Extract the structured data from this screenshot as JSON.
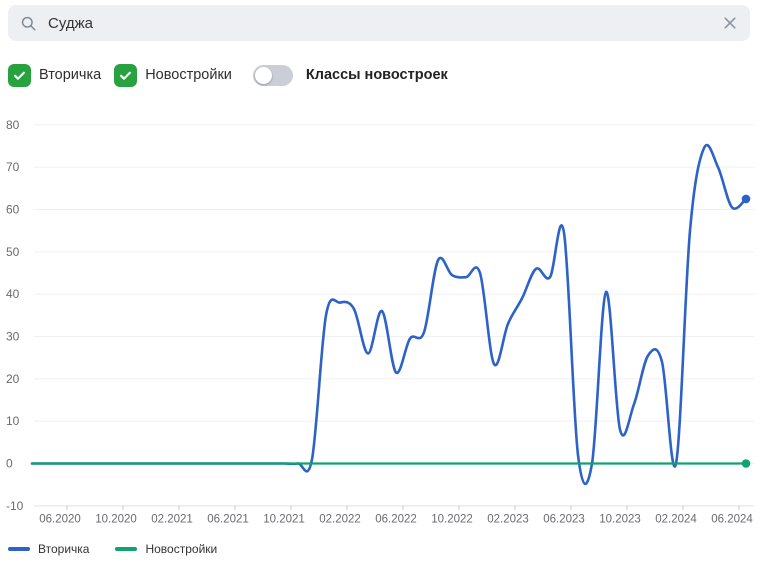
{
  "search": {
    "value": "Суджа",
    "placeholder": ""
  },
  "controls": {
    "checkboxes": [
      {
        "key": "vtorichka",
        "label": "Вторичка",
        "checked": true
      },
      {
        "key": "novostroyki",
        "label": "Новостройки",
        "checked": true
      }
    ],
    "toggle": {
      "key": "novostroyki-classes",
      "label": "Классы новостроек",
      "on": false
    }
  },
  "colors": {
    "checkbox_green": "#27a23e",
    "toggle_off_bg": "#c9ced7",
    "search_bg": "#edeff2",
    "grid_line": "#f0f0f2",
    "axis_line": "#e2e2e6",
    "tick_mark": "#c9c9ce",
    "axis_text": "#6b6b70",
    "series_blue": "#2d62c8",
    "series_green": "#0fa36d"
  },
  "chart_data": {
    "type": "line",
    "title": "",
    "xlabel": "",
    "ylabel": "",
    "ylim": [
      -10,
      80
    ],
    "y_ticks": [
      80,
      70,
      60,
      50,
      40,
      30,
      20,
      10,
      0,
      -10
    ],
    "grid": true,
    "legend_position": "bottom",
    "x_tick_labels": [
      "06.2020",
      "10.2020",
      "02.2021",
      "06.2021",
      "10.2021",
      "02.2022",
      "06.2022",
      "10.2022",
      "02.2023",
      "06.2023",
      "10.2023",
      "02.2024",
      "06.2024"
    ],
    "months": [
      "04.2020",
      "05.2020",
      "06.2020",
      "07.2020",
      "08.2020",
      "09.2020",
      "10.2020",
      "11.2020",
      "12.2020",
      "01.2021",
      "02.2021",
      "03.2021",
      "04.2021",
      "05.2021",
      "06.2021",
      "07.2021",
      "08.2021",
      "09.2021",
      "10.2021",
      "11.2021",
      "12.2021",
      "01.2022",
      "02.2022",
      "03.2022",
      "04.2022",
      "05.2022",
      "06.2022",
      "07.2022",
      "08.2022",
      "09.2022",
      "10.2022",
      "11.2022",
      "12.2022",
      "01.2023",
      "02.2023",
      "03.2023",
      "04.2023",
      "05.2023",
      "06.2023",
      "07.2023",
      "08.2023",
      "09.2023",
      "10.2023",
      "11.2023",
      "12.2023",
      "01.2024",
      "02.2024",
      "03.2024",
      "04.2024",
      "05.2024",
      "06.2024",
      "07.2024"
    ],
    "series": [
      {
        "key": "vtorichka",
        "name": "Вторичка",
        "color": "#2d62c8",
        "values": [
          0,
          0,
          0,
          0,
          0,
          0,
          0,
          0,
          0,
          0,
          0,
          0,
          0,
          0,
          0,
          0,
          0,
          0,
          0,
          0,
          1,
          35,
          38,
          36.5,
          26,
          36,
          21.5,
          29.5,
          31,
          48,
          44.5,
          44,
          45,
          23.5,
          33,
          39,
          46,
          44,
          54.5,
          2,
          0,
          40.5,
          8,
          14,
          25.5,
          24,
          0,
          55,
          74.5,
          70,
          60.5,
          62.5
        ]
      },
      {
        "key": "novostroyki",
        "name": "Новостройки",
        "color": "#0fa36d",
        "values": [
          0,
          0,
          0,
          0,
          0,
          0,
          0,
          0,
          0,
          0,
          0,
          0,
          0,
          0,
          0,
          0,
          0,
          0,
          0,
          0,
          0,
          0,
          0,
          0,
          0,
          0,
          0,
          0,
          0,
          0,
          0,
          0,
          0,
          0,
          0,
          0,
          0,
          0,
          0,
          0,
          0,
          0,
          0,
          0,
          0,
          0,
          0,
          0,
          0,
          0,
          0,
          0
        ]
      }
    ],
    "end_dots": true
  }
}
